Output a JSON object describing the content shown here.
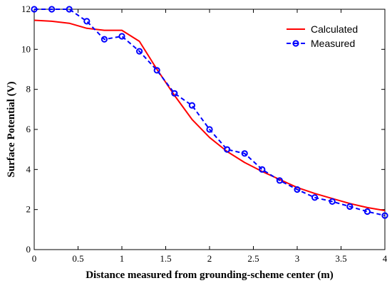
{
  "chart_data": {
    "type": "line",
    "xlabel": "Distance measured from grounding-scheme center (m)",
    "ylabel": "Surface Potential (V)",
    "xlim": [
      0,
      4
    ],
    "ylim": [
      0,
      12
    ],
    "xticks": [
      0,
      0.5,
      1,
      1.5,
      2,
      2.5,
      3,
      3.5,
      4
    ],
    "xtick_labels": [
      "0",
      "0.5",
      "1",
      "1.5",
      "2",
      "2.5",
      "3",
      "3.5",
      "4"
    ],
    "yticks": [
      0,
      2,
      4,
      6,
      8,
      10,
      12
    ],
    "ytick_labels": [
      "0",
      "2",
      "4",
      "6",
      "8",
      "10",
      "12"
    ],
    "grid": false,
    "legend_position": "top-right",
    "series": [
      {
        "name": "Calculated",
        "color": "#ff0000",
        "style": "solid",
        "marker": "none",
        "x": [
          0,
          0.2,
          0.4,
          0.6,
          0.8,
          1.0,
          1.2,
          1.4,
          1.6,
          1.8,
          2.0,
          2.2,
          2.4,
          2.6,
          2.8,
          3.0,
          3.2,
          3.4,
          3.6,
          3.8,
          4.0
        ],
        "y": [
          11.45,
          11.4,
          11.3,
          11.05,
          10.95,
          10.95,
          10.4,
          9.0,
          7.7,
          6.5,
          5.6,
          4.9,
          4.35,
          3.9,
          3.5,
          3.1,
          2.8,
          2.55,
          2.3,
          2.1,
          1.95
        ]
      },
      {
        "name": "Measured",
        "color": "#0000ff",
        "style": "dashed",
        "marker": "circle",
        "x": [
          0,
          0.2,
          0.4,
          0.6,
          0.8,
          1.0,
          1.2,
          1.4,
          1.6,
          1.8,
          2.0,
          2.2,
          2.4,
          2.6,
          2.8,
          3.0,
          3.2,
          3.4,
          3.6,
          3.8,
          4.0
        ],
        "y": [
          12.0,
          12.0,
          12.0,
          11.4,
          10.5,
          10.65,
          9.9,
          8.95,
          7.8,
          7.2,
          6.0,
          5.0,
          4.8,
          4.0,
          3.45,
          3.0,
          2.6,
          2.4,
          2.15,
          1.9,
          1.7
        ]
      }
    ]
  }
}
